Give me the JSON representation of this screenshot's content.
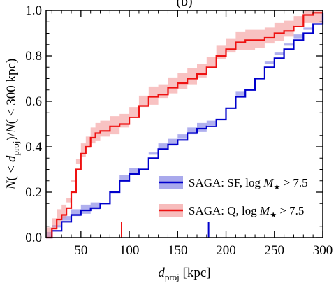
{
  "title": "(b)",
  "chart_data": {
    "type": "line",
    "xlabel": "d",
    "xlabel_sub": "proj",
    "xlabel_unit": " [kpc]",
    "ylabel_parts": [
      "N( < d",
      "proj",
      ")/N( < 300 kpc)"
    ],
    "xlim": [
      14,
      300
    ],
    "ylim": [
      0.0,
      1.0
    ],
    "xticks": [
      50,
      100,
      150,
      200,
      250,
      300
    ],
    "yticks": [
      0.0,
      0.2,
      0.4,
      0.6,
      0.8,
      1.0
    ],
    "xtick_labels": [
      "50",
      "100",
      "150",
      "200",
      "250",
      "300"
    ],
    "ytick_labels": [
      "0.0",
      "0.2",
      "0.4",
      "0.6",
      "0.8",
      "1.0"
    ],
    "legend_position": "lower-right",
    "series": [
      {
        "name": "SAGA: SF, log M★ > 7.5",
        "legend_prefix": "SAGA: SF, log ",
        "legend_var": "M",
        "legend_sub": "★",
        "legend_suffix": " > 7.5",
        "color": "#0000cc",
        "band_color": "#6f6fe0",
        "band_halfwidth": 0.025,
        "median_marker_x": 182,
        "x": [
          14,
          20,
          30,
          40,
          50,
          60,
          70,
          80,
          90,
          100,
          110,
          120,
          130,
          140,
          150,
          160,
          170,
          180,
          190,
          200,
          210,
          220,
          230,
          240,
          250,
          260,
          270,
          280,
          290,
          300
        ],
        "y": [
          0.0,
          0.03,
          0.07,
          0.1,
          0.12,
          0.13,
          0.15,
          0.2,
          0.25,
          0.28,
          0.3,
          0.35,
          0.39,
          0.41,
          0.43,
          0.46,
          0.48,
          0.49,
          0.52,
          0.57,
          0.62,
          0.65,
          0.7,
          0.75,
          0.79,
          0.83,
          0.87,
          0.9,
          0.94,
          0.99
        ]
      },
      {
        "name": "SAGA: Q, log M★ > 7.5",
        "legend_prefix": "SAGA: Q, log ",
        "legend_var": "M",
        "legend_sub": "★",
        "legend_suffix": " > 7.5",
        "color": "#ee1111",
        "band_color": "#f29090",
        "band_halfwidth": 0.045,
        "median_marker_x": 92,
        "x": [
          14,
          20,
          25,
          30,
          35,
          40,
          45,
          50,
          55,
          60,
          65,
          70,
          80,
          90,
          100,
          110,
          120,
          130,
          140,
          150,
          160,
          170,
          180,
          190,
          200,
          210,
          220,
          230,
          240,
          250,
          260,
          270,
          280,
          290,
          300
        ],
        "y": [
          0.0,
          0.04,
          0.08,
          0.1,
          0.13,
          0.2,
          0.3,
          0.37,
          0.4,
          0.44,
          0.46,
          0.47,
          0.49,
          0.5,
          0.53,
          0.58,
          0.62,
          0.63,
          0.66,
          0.68,
          0.7,
          0.72,
          0.75,
          0.8,
          0.83,
          0.86,
          0.87,
          0.87,
          0.88,
          0.9,
          0.91,
          0.93,
          0.98,
          0.99,
          0.99
        ]
      }
    ]
  }
}
